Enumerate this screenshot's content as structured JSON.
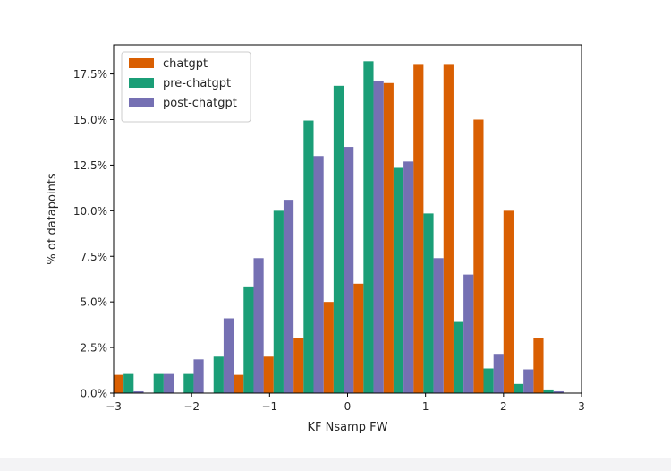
{
  "chart_data": {
    "type": "bar",
    "xlabel": "KF Nsamp FW",
    "ylabel": "% of datapoints",
    "xlim": [
      -3,
      3
    ],
    "ylim": [
      0,
      19.1
    ],
    "x_ticks": [
      -3,
      -2,
      -1,
      0,
      1,
      2,
      3
    ],
    "x_tick_labels": [
      "−3",
      "−2",
      "−1",
      "0",
      "1",
      "2",
      "3"
    ],
    "y_ticks": [
      0,
      2.5,
      5.0,
      7.5,
      10.0,
      12.5,
      15.0,
      17.5
    ],
    "y_tick_labels": [
      "0.0%",
      "2.5%",
      "5.0%",
      "7.5%",
      "10.0%",
      "12.5%",
      "15.0%",
      "17.5%"
    ],
    "bin_width": 0.385,
    "bin_centers": [
      -2.808,
      -2.423,
      -2.038,
      -1.654,
      -1.269,
      -0.885,
      -0.5,
      -0.115,
      0.269,
      0.654,
      1.038,
      1.423,
      1.808,
      2.192,
      2.577
    ],
    "legend_position": "upper-left",
    "grid": false,
    "series": [
      {
        "name": "chatgpt",
        "color": "#d95f02",
        "values": [
          1.0,
          0,
          0,
          0,
          1.0,
          2.0,
          3.0,
          5.0,
          6.0,
          17.0,
          18.0,
          18.0,
          15.0,
          10.0,
          3.0
        ]
      },
      {
        "name": "pre-chatgpt",
        "color": "#1b9e77",
        "values": [
          1.05,
          1.05,
          1.05,
          2.0,
          5.85,
          10.0,
          14.95,
          16.85,
          18.2,
          12.35,
          9.85,
          3.9,
          1.35,
          0.5,
          0.2
        ]
      },
      {
        "name": "post-chatgpt",
        "color": "#7570b3",
        "values": [
          0.1,
          1.05,
          1.85,
          4.1,
          7.4,
          10.6,
          13.0,
          13.5,
          17.1,
          12.7,
          7.4,
          6.5,
          2.15,
          1.3,
          0.1
        ]
      }
    ]
  }
}
